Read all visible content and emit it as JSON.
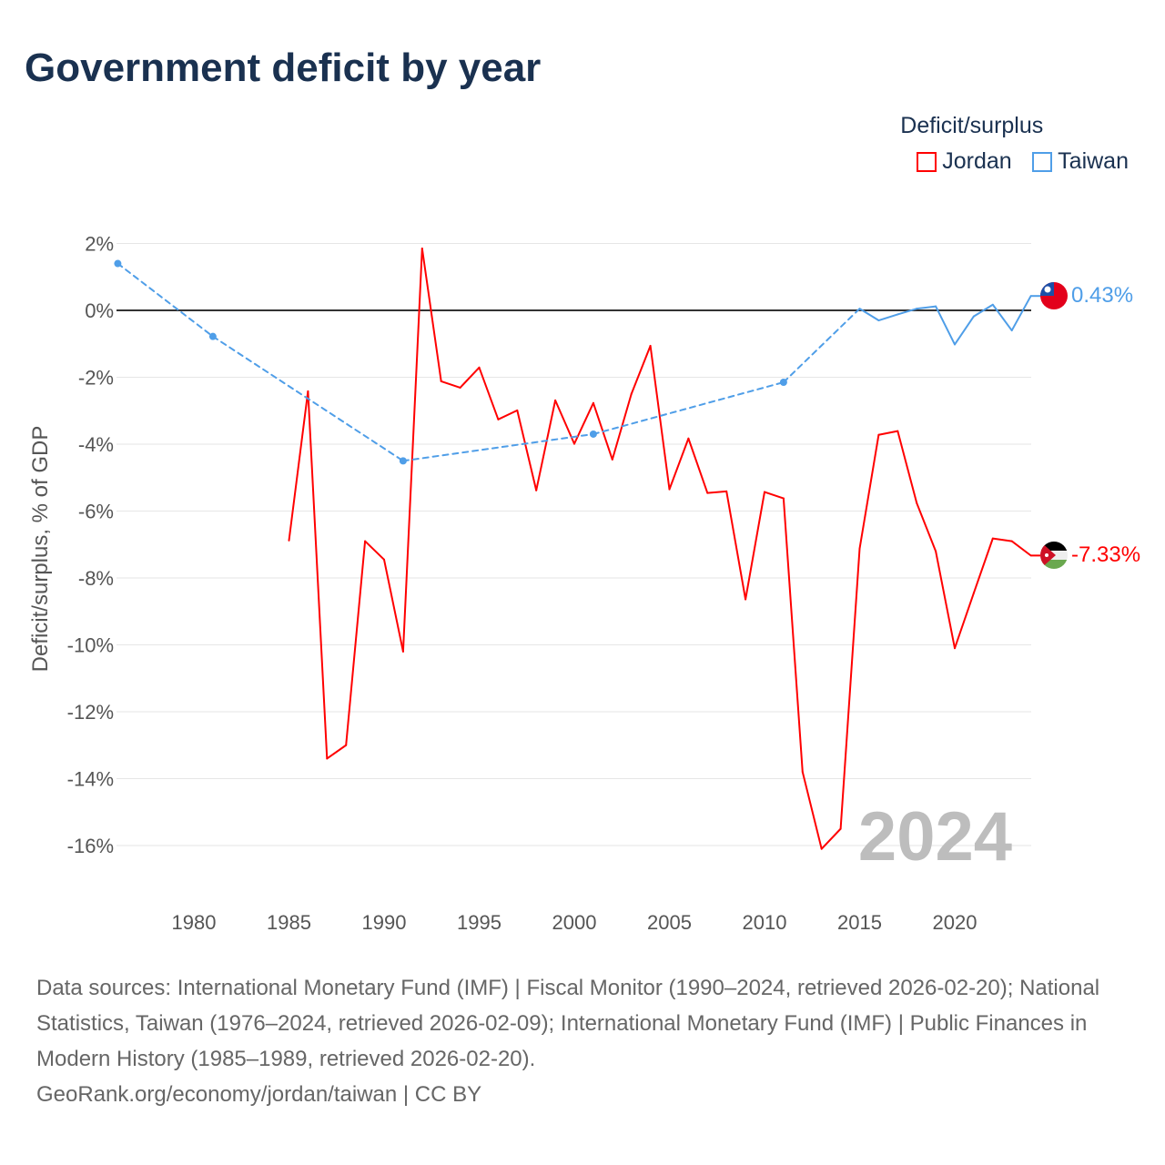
{
  "title": "Government deficit by year",
  "legend": {
    "title": "Deficit/surplus",
    "items": [
      {
        "name": "Jordan",
        "color": "#ff0000"
      },
      {
        "name": "Taiwan",
        "color": "#4f9ee8"
      }
    ]
  },
  "footer": {
    "sources": "Data sources: International Monetary Fund (IMF) | Fiscal Monitor (1990–2024, retrieved 2026-02-20); National Statistics, Taiwan (1976–2024, retrieved 2026-02-09); International Monetary Fund (IMF) | Public Finances in Modern History (1985–1989, retrieved 2026-02-20).",
    "credit": "GeoRank.org/economy/jordan/taiwan | CC BY"
  },
  "chart_data": {
    "type": "line",
    "title": "Government deficit by year",
    "xlabel": "",
    "ylabel": "Deficit/surplus, % of GDP",
    "xlim": [
      1976,
      2024
    ],
    "ylim": [
      -16,
      2
    ],
    "x_ticks": [
      "1980",
      "1985",
      "1990",
      "1995",
      "2000",
      "2005",
      "2010",
      "2015",
      "2020"
    ],
    "y_ticks": [
      "2%",
      "0%",
      "-2%",
      "-4%",
      "-6%",
      "-8%",
      "-10%",
      "-12%",
      "-14%",
      "-16%"
    ],
    "year_watermark": "2024",
    "series": [
      {
        "name": "Jordan",
        "color": "#ff0000",
        "end_label": "-7.33%",
        "x": [
          1985,
          1986,
          1987,
          1988,
          1989,
          1990,
          1991,
          1992,
          1993,
          1994,
          1995,
          1996,
          1997,
          1998,
          1999,
          2000,
          2001,
          2002,
          2003,
          2004,
          2005,
          2006,
          2007,
          2008,
          2009,
          2010,
          2011,
          2012,
          2013,
          2014,
          2015,
          2016,
          2017,
          2018,
          2019,
          2020,
          2021,
          2022,
          2023,
          2024
        ],
        "values": [
          -6.88,
          -2.42,
          -13.4,
          -13.0,
          -6.9,
          -7.45,
          -10.2,
          1.85,
          -2.12,
          -2.31,
          -1.71,
          -3.26,
          -2.99,
          -5.38,
          -2.69,
          -3.99,
          -2.77,
          -4.46,
          -2.5,
          -1.06,
          -5.35,
          -3.83,
          -5.46,
          -5.41,
          -8.64,
          -5.43,
          -5.62,
          -13.8,
          -16.1,
          -15.5,
          -7.12,
          -3.72,
          -3.61,
          -5.76,
          -7.2,
          -10.1,
          -8.45,
          -6.82,
          -6.9,
          -7.33
        ]
      },
      {
        "name": "Taiwan",
        "color": "#4f9ee8",
        "end_label": "0.43%",
        "x": [
          1976,
          1981,
          1991,
          2001,
          2011,
          2015,
          2016,
          2017,
          2018,
          2019,
          2020,
          2021,
          2022,
          2023,
          2024
        ],
        "values": [
          1.4,
          -0.78,
          -4.5,
          -3.7,
          -2.15,
          0.05,
          -0.3,
          -0.12,
          0.05,
          0.12,
          -1.02,
          -0.18,
          0.17,
          -0.6,
          0.43
        ]
      }
    ]
  }
}
